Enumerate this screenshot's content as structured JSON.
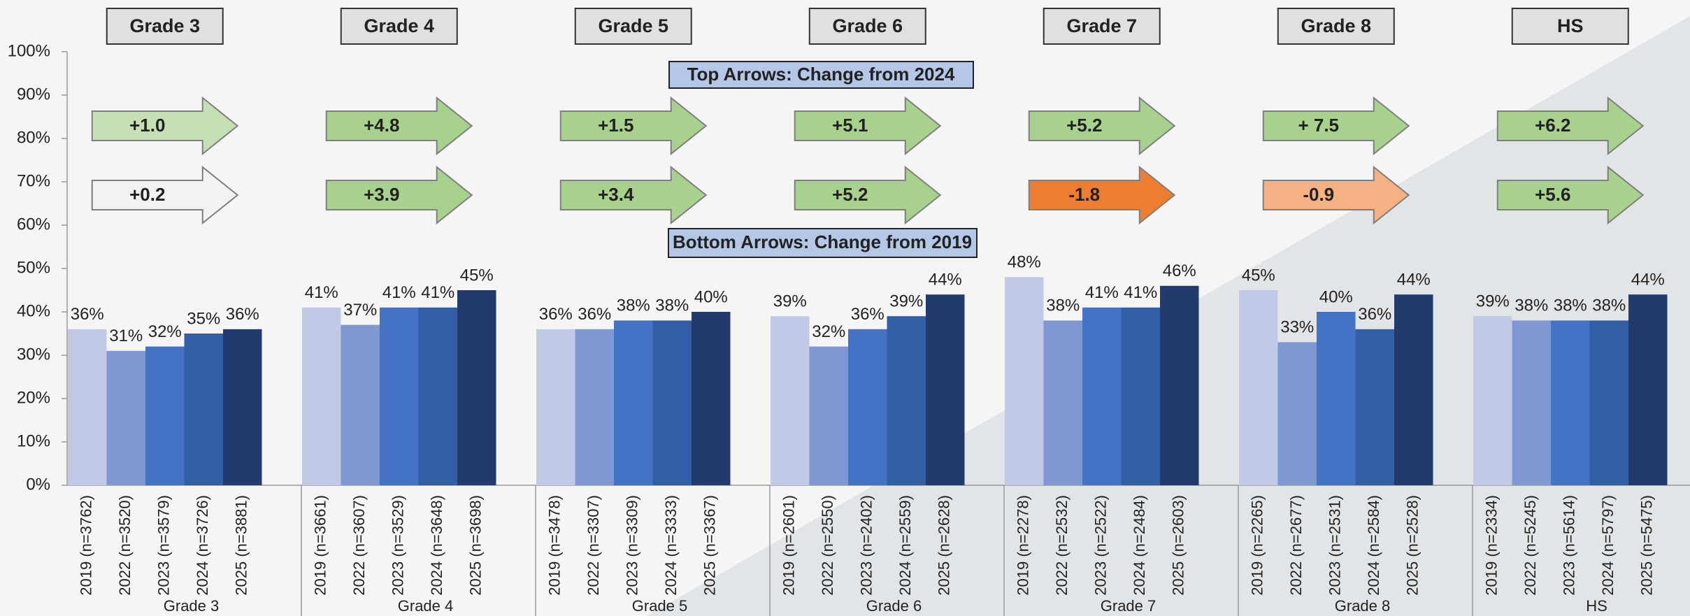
{
  "chart_data": {
    "type": "bar",
    "ylim": [
      0,
      100
    ],
    "yticks": [
      {
        "value": 0,
        "label": "0%"
      },
      {
        "value": 10,
        "label": "10%"
      },
      {
        "value": 20,
        "label": "20%"
      },
      {
        "value": 30,
        "label": "30%"
      },
      {
        "value": 40,
        "label": "40%"
      },
      {
        "value": 50,
        "label": "50%"
      },
      {
        "value": 60,
        "label": "60%"
      },
      {
        "value": 70,
        "label": "70%"
      },
      {
        "value": 80,
        "label": "80%"
      },
      {
        "value": 90,
        "label": "90%"
      },
      {
        "value": 100,
        "label": "100%"
      }
    ],
    "bar_colors": [
      "#c0cae6",
      "#7f97d3",
      "#4472c4",
      "#325ea6",
      "#223b6c"
    ],
    "annotations": {
      "top": "Top Arrows: Change from 2024",
      "bottom": "Bottom Arrows: Change from 2019"
    },
    "groups": [
      {
        "name": "Grade 3",
        "categories": [
          "2019 (n=3762)",
          "2022 (n=3520)",
          "2023 (n=3579)",
          "2024 (n=3726)",
          "2025 (n=3881)"
        ],
        "values": [
          36,
          31,
          32,
          35,
          36
        ],
        "value_labels": [
          "36%",
          "31%",
          "32%",
          "35%",
          "36%"
        ],
        "top_arrow": {
          "label": "+1.0",
          "color": "#c5e0b4"
        },
        "bottom_arrow": {
          "label": "+0.2",
          "color": "#f2f2f2"
        }
      },
      {
        "name": "Grade 4",
        "categories": [
          "2019 (n=3661)",
          "2022 (n=3607)",
          "2023 (n=3529)",
          "2024 (n=3648)",
          "2025 (n=3698)"
        ],
        "values": [
          41,
          37,
          41,
          41,
          45
        ],
        "value_labels": [
          "41%",
          "37%",
          "41%",
          "41%",
          "45%"
        ],
        "top_arrow": {
          "label": "+4.8",
          "color": "#a9d18e"
        },
        "bottom_arrow": {
          "label": "+3.9",
          "color": "#a9d18e"
        }
      },
      {
        "name": "Grade 5",
        "categories": [
          "2019 (n=3478)",
          "2022 (n=3307)",
          "2023 (n=3309)",
          "2024 (n=3333)",
          "2025 (n=3367)"
        ],
        "values": [
          36,
          36,
          38,
          38,
          40
        ],
        "value_labels": [
          "36%",
          "36%",
          "38%",
          "38%",
          "40%"
        ],
        "top_arrow": {
          "label": "+1.5",
          "color": "#a9d18e"
        },
        "bottom_arrow": {
          "label": "+3.4",
          "color": "#a9d18e"
        }
      },
      {
        "name": "Grade 6",
        "categories": [
          "2019 (n=2601)",
          "2022 (n=2550)",
          "2023 (n=2402)",
          "2024 (n=2559)",
          "2025 (n=2628)"
        ],
        "values": [
          39,
          32,
          36,
          39,
          44
        ],
        "value_labels": [
          "39%",
          "32%",
          "36%",
          "39%",
          "44%"
        ],
        "top_arrow": {
          "label": "+5.1",
          "color": "#a9d18e"
        },
        "bottom_arrow": {
          "label": "+5.2",
          "color": "#a9d18e"
        }
      },
      {
        "name": "Grade 7",
        "categories": [
          "2019 (n=2278)",
          "2022 (n=2532)",
          "2023 (n=2522)",
          "2024 (n=2484)",
          "2025 (n=2603)"
        ],
        "values": [
          48,
          38,
          41,
          41,
          46
        ],
        "value_labels": [
          "48%",
          "38%",
          "41%",
          "41%",
          "46%"
        ],
        "top_arrow": {
          "label": "+5.2",
          "color": "#a9d18e"
        },
        "bottom_arrow": {
          "label": "-1.8",
          "color": "#ed7d31"
        }
      },
      {
        "name": "Grade 8",
        "categories": [
          "2019 (n=2265)",
          "2022 (n=2677)",
          "2023 (n=2531)",
          "2024 (n=2584)",
          "2025 (n=2528)"
        ],
        "values": [
          45,
          33,
          40,
          36,
          44
        ],
        "value_labels": [
          "45%",
          "33%",
          "40%",
          "36%",
          "44%"
        ],
        "top_arrow": {
          "label": "+ 7.5",
          "color": "#a9d18e"
        },
        "bottom_arrow": {
          "label": "-0.9",
          "color": "#f4b183"
        }
      },
      {
        "name": "HS",
        "categories": [
          "2019 (n=2334)",
          "2022 (n=5245)",
          "2023 (n=5614)",
          "2024 (n=5797)",
          "2025 (n=5475)"
        ],
        "values": [
          39,
          38,
          38,
          38,
          44
        ],
        "value_labels": [
          "39%",
          "38%",
          "38%",
          "38%",
          "44%"
        ],
        "top_arrow": {
          "label": "+6.2",
          "color": "#a9d18e"
        },
        "bottom_arrow": {
          "label": "+5.6",
          "color": "#a9d18e"
        }
      }
    ]
  }
}
